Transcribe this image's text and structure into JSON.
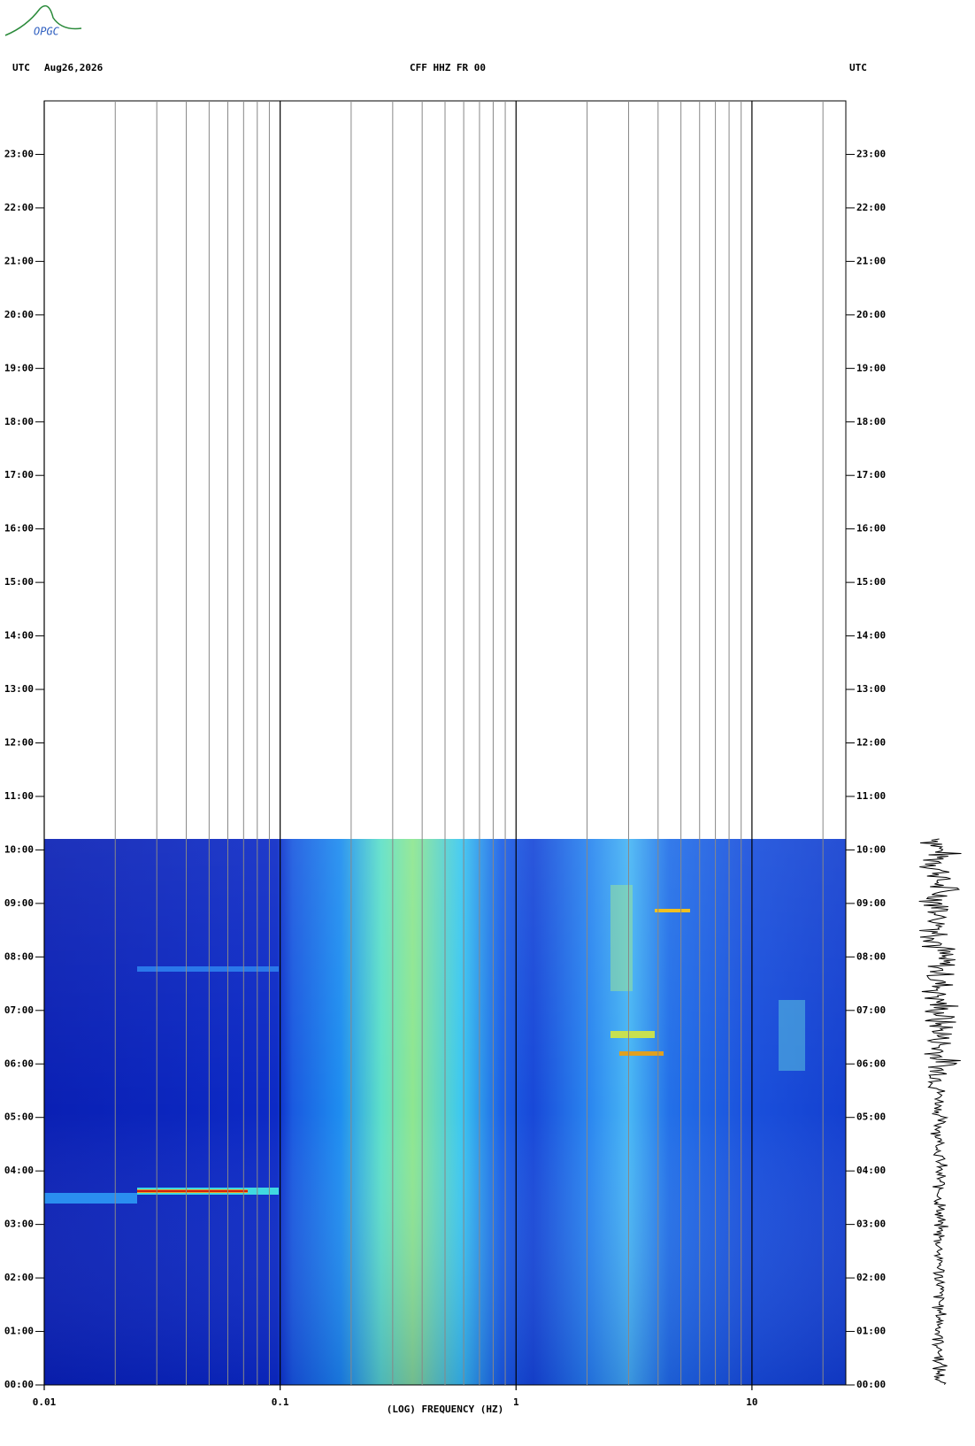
{
  "header": {
    "logo": "OPGC",
    "left_zone": "UTC",
    "date": "Aug26,2026",
    "station": "CFF HHZ FR 00",
    "right_zone": "UTC"
  },
  "chart_data": {
    "type": "spectrogram",
    "xlabel": "(LOG) FREQUENCY (HZ)",
    "xscale": "log",
    "xlim": [
      0.01,
      25
    ],
    "xticks": [
      0.01,
      0.1,
      1,
      10
    ],
    "xminor": [
      0.02,
      0.03,
      0.04,
      0.05,
      0.06,
      0.07,
      0.08,
      0.09,
      0.2,
      0.3,
      0.4,
      0.5,
      0.6,
      0.7,
      0.8,
      0.9,
      2,
      3,
      4,
      5,
      6,
      7,
      8,
      9,
      20
    ],
    "ylim": [
      0,
      24
    ],
    "yticks": [
      {
        "value": 0,
        "label": "00:00"
      },
      {
        "value": 1,
        "label": "01:00"
      },
      {
        "value": 2,
        "label": "02:00"
      },
      {
        "value": 3,
        "label": "03:00"
      },
      {
        "value": 4,
        "label": "04:00"
      },
      {
        "value": 5,
        "label": "05:00"
      },
      {
        "value": 6,
        "label": "06:00"
      },
      {
        "value": 7,
        "label": "07:00"
      },
      {
        "value": 8,
        "label": "08:00"
      },
      {
        "value": 9,
        "label": "09:00"
      },
      {
        "value": 10,
        "label": "10:00"
      },
      {
        "value": 11,
        "label": "11:00"
      },
      {
        "value": 12,
        "label": "12:00"
      },
      {
        "value": 13,
        "label": "13:00"
      },
      {
        "value": 14,
        "label": "14:00"
      },
      {
        "value": 15,
        "label": "15:00"
      },
      {
        "value": 16,
        "label": "16:00"
      },
      {
        "value": 17,
        "label": "17:00"
      },
      {
        "value": 18,
        "label": "18:00"
      },
      {
        "value": 19,
        "label": "19:00"
      },
      {
        "value": 20,
        "label": "20:00"
      },
      {
        "value": 21,
        "label": "21:00"
      },
      {
        "value": 22,
        "label": "22:00"
      },
      {
        "value": 23,
        "label": "23:00"
      }
    ]
  }
}
